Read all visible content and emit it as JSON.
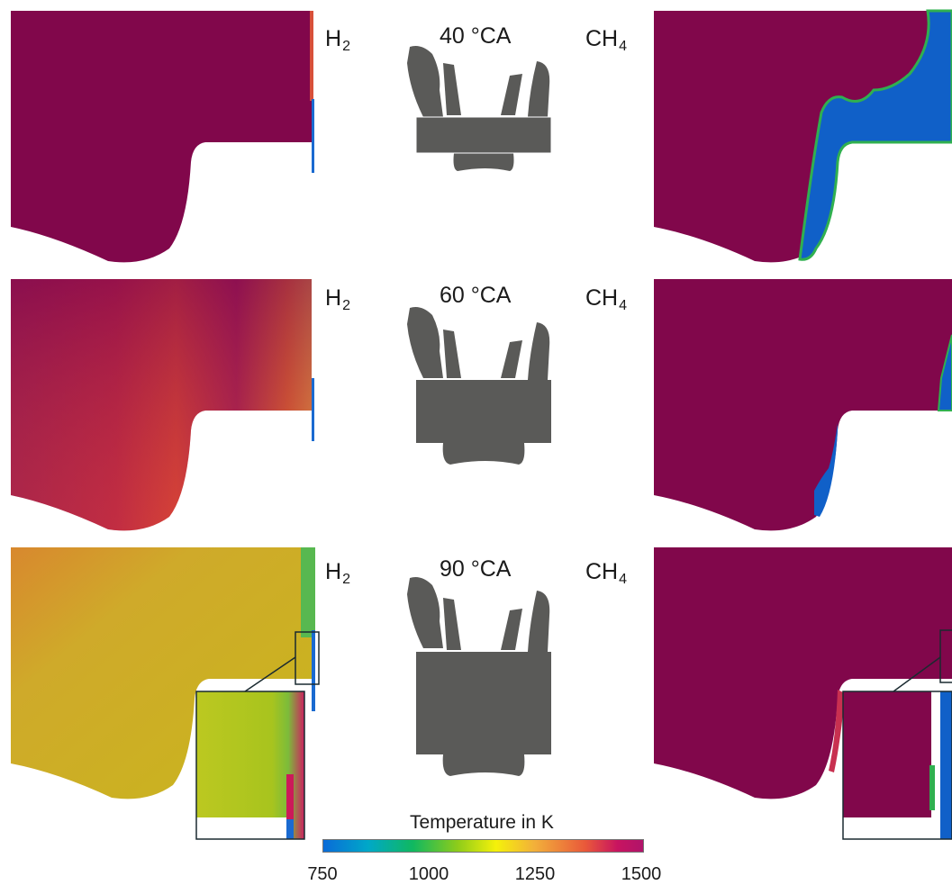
{
  "rows": [
    {
      "left_label": "H",
      "left_sub": "2",
      "crank_angle": "40 °CA",
      "right_label": "CH",
      "right_sub": "4"
    },
    {
      "left_label": "H",
      "left_sub": "2",
      "crank_angle": "60 °CA",
      "right_label": "CH",
      "right_sub": "4"
    },
    {
      "left_label": "H",
      "left_sub": "2",
      "crank_angle": "90 °CA",
      "right_label": "CH",
      "right_sub": "4"
    }
  ],
  "colorbar": {
    "title": "Temperature in K",
    "ticks": [
      "750",
      "1000",
      "1250",
      "1500"
    ],
    "min_value": 750,
    "max_value": 1500,
    "colors": [
      "#0a6bd8",
      "#10b860",
      "#f5f10a",
      "#e9583a",
      "#b0146a"
    ]
  }
}
